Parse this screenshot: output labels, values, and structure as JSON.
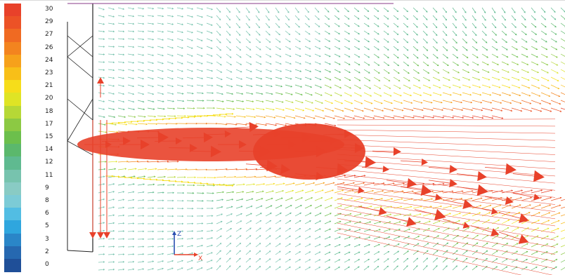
{
  "legend": {
    "entries": [
      {
        "label": "30",
        "color": "#e8412a"
      },
      {
        "label": "29",
        "color": "#ec5226"
      },
      {
        "label": "27",
        "color": "#f06a22"
      },
      {
        "label": "26",
        "color": "#f3841f"
      },
      {
        "label": "24",
        "color": "#f6a11b"
      },
      {
        "label": "23",
        "color": "#f8bf18"
      },
      {
        "label": "21",
        "color": "#f6dd1a"
      },
      {
        "label": "20",
        "color": "#dfe425"
      },
      {
        "label": "18",
        "color": "#b6d836"
      },
      {
        "label": "17",
        "color": "#8cc943"
      },
      {
        "label": "15",
        "color": "#6cbf4c"
      },
      {
        "label": "14",
        "color": "#5bb86c"
      },
      {
        "label": "12",
        "color": "#5fba90"
      },
      {
        "label": "11",
        "color": "#77c3ae"
      },
      {
        "label": "9",
        "color": "#89cbc4"
      },
      {
        "label": "8",
        "color": "#7ccbd6"
      },
      {
        "label": "6",
        "color": "#52bde3"
      },
      {
        "label": "5",
        "color": "#2fa6de"
      },
      {
        "label": "3",
        "color": "#2a86c8"
      },
      {
        "label": "2",
        "color": "#2668b0"
      },
      {
        "label": "0",
        "color": "#1f4f98"
      }
    ]
  },
  "axes": {
    "z_label": "Z",
    "x_label": "X"
  },
  "colors": {
    "strong": "#e8412a",
    "mid": "#f6dd1a",
    "weak": "#7ccbd6",
    "frame": "#222222"
  }
}
